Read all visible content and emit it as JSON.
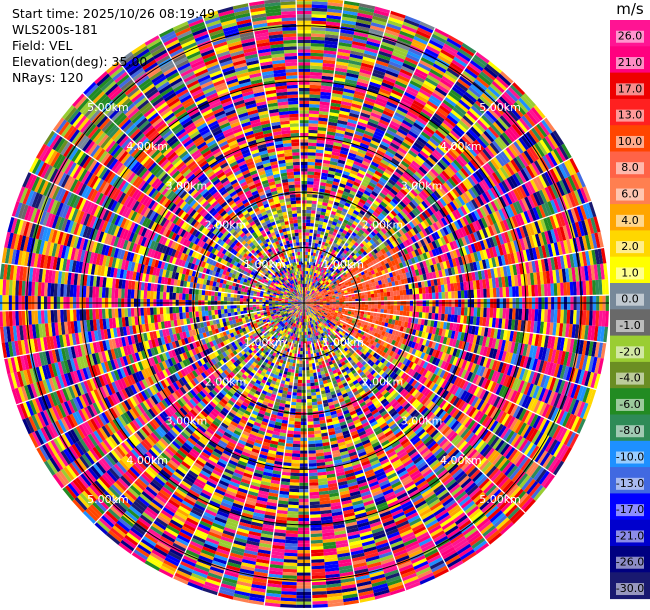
{
  "info": {
    "start_time": "Start time: 2025/10/26 08:19:49",
    "site": "WLS200s-181",
    "field": "Field: VEL",
    "elevation": "Elevation(deg): 35.00",
    "nrays": "NRays: 120"
  },
  "chart_data": {
    "type": "heatmap",
    "projection": "polar-ppi",
    "field": "VEL",
    "n_rays": 120,
    "range_rings_km": [
      1,
      2,
      3,
      4,
      5
    ],
    "ring_label_texts": [
      "1.00km",
      "2.00km",
      "3.00km",
      "4.00km",
      "5.00km"
    ],
    "range_max_km": 5.5,
    "colorbar": {
      "unit": "m/s",
      "ticks": [
        "26.0",
        "21.0",
        "17.0",
        "13.0",
        "10.0",
        "8.0",
        "6.0",
        "4.0",
        "2.0",
        "1.0",
        "0.0",
        "-1.0",
        "-2.0",
        "-4.0",
        "-6.0",
        "-8.0",
        "-10.0",
        "-13.0",
        "-17.0",
        "-21.0",
        "-26.0",
        "-30.0"
      ],
      "colors": [
        "#ff1493",
        "#ff007f",
        "#ee0000",
        "#ff2020",
        "#ff4500",
        "#ff6347",
        "#ff7f50",
        "#ffa500",
        "#ffd700",
        "#ffff00",
        "#778899",
        "#696969",
        "#9acd32",
        "#6b8e23",
        "#228b22",
        "#2e8b57",
        "#1e90ff",
        "#4169e1",
        "#0000ff",
        "#0000cd",
        "#000080",
        "#191970"
      ]
    }
  }
}
